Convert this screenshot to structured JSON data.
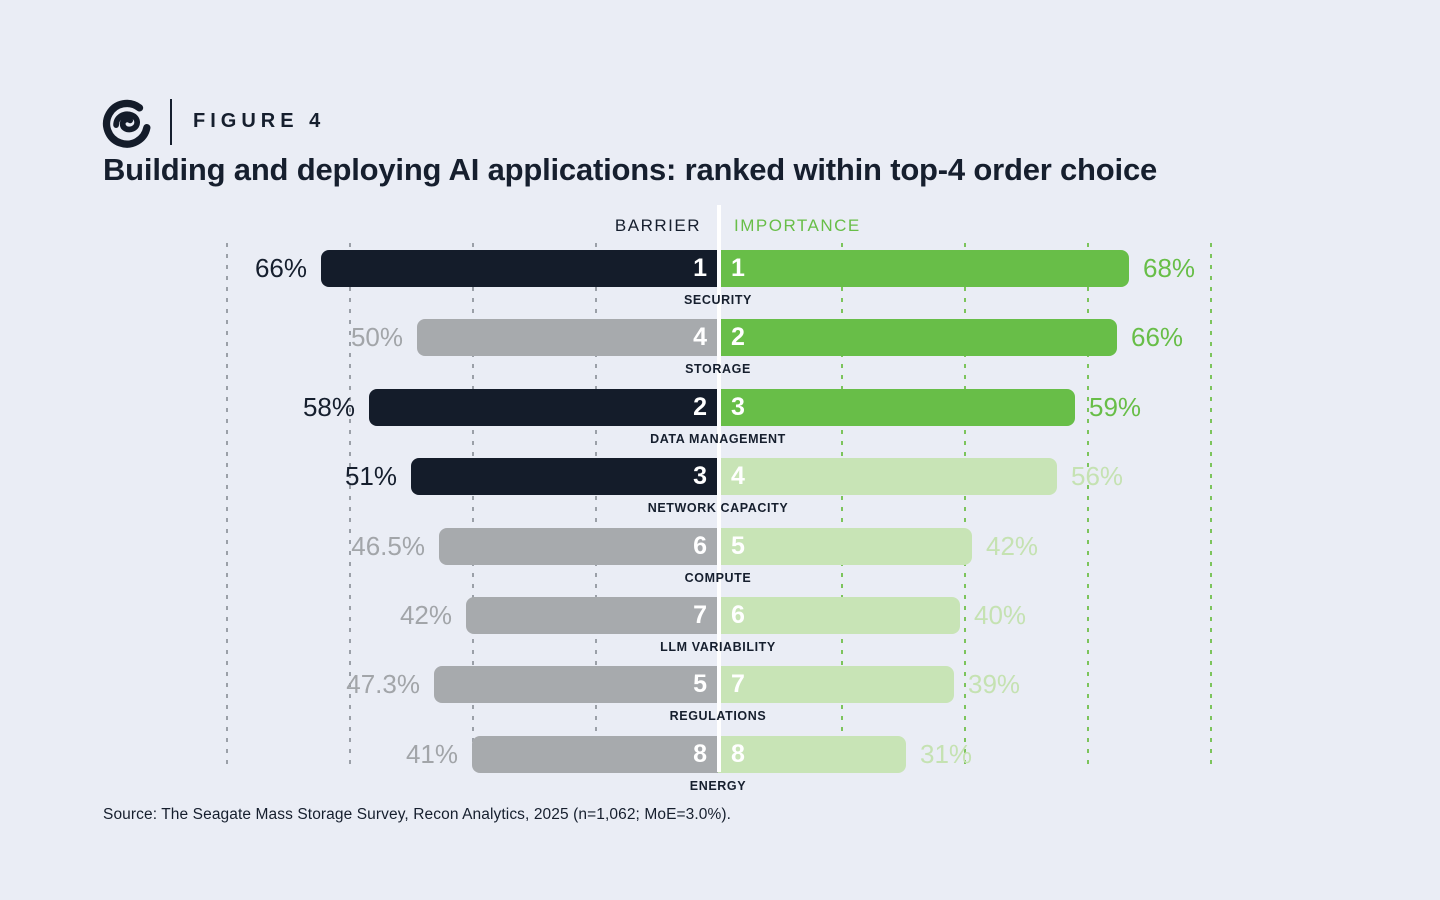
{
  "figure": {
    "label": "FIGURE 4",
    "title": "Building and deploying AI applications: ranked within top-4 order choice"
  },
  "columns": {
    "left_header": "BARRIER",
    "right_header": "IMPORTANCE"
  },
  "source": "Source: The Seagate Mass Storage Survey, Recon Analytics, 2025 (n=1,062; MoE=3.0%).",
  "icons": {
    "logo": "seagate-spiral-logo"
  },
  "colors": {
    "bg": "#eaedf5",
    "dark": "#141c2a",
    "gray": "#a7aaad",
    "green": "#68be48",
    "lightgreen": "#c8e4b6",
    "ink": "#161f2e",
    "graytext": "#a2a5a9",
    "lightgreentext": "#c5e2b2"
  },
  "chart_data": {
    "type": "bar",
    "variant": "diverging-ranked-butterfly",
    "title": "Building and deploying AI applications: ranked within top-4 order choice",
    "categories": [
      "SECURITY",
      "STORAGE",
      "DATA MANAGEMENT",
      "NETWORK CAPACITY",
      "COMPUTE",
      "LLM VARIABILITY",
      "REGULATIONS",
      "ENERGY"
    ],
    "series": [
      {
        "name": "BARRIER",
        "side": "left",
        "values": [
          66,
          50,
          58,
          51,
          46.5,
          42,
          47.3,
          41
        ],
        "value_labels": [
          "66%",
          "50%",
          "58%",
          "51%",
          "46.5%",
          "42%",
          "47.3%",
          "41%"
        ],
        "ranks": [
          1,
          4,
          2,
          3,
          6,
          7,
          5,
          8
        ],
        "emphasis": [
          "dark",
          "gray",
          "dark",
          "dark",
          "gray",
          "gray",
          "gray",
          "gray"
        ]
      },
      {
        "name": "IMPORTANCE",
        "side": "right",
        "values": [
          68,
          66,
          59,
          56,
          42,
          40,
          39,
          31
        ],
        "value_labels": [
          "68%",
          "66%",
          "59%",
          "56%",
          "42%",
          "40%",
          "39%",
          "31%"
        ],
        "ranks": [
          1,
          2,
          3,
          4,
          5,
          6,
          7,
          8
        ],
        "emphasis": [
          "green",
          "green",
          "green",
          "lightgreen",
          "lightgreen",
          "lightgreen",
          "lightgreen",
          "lightgreen"
        ]
      }
    ],
    "axis": {
      "unit": "%",
      "max": 80,
      "gridline_step": 20,
      "grid_style": "dashed",
      "grid_on": true
    },
    "legend_position": "top-center"
  }
}
